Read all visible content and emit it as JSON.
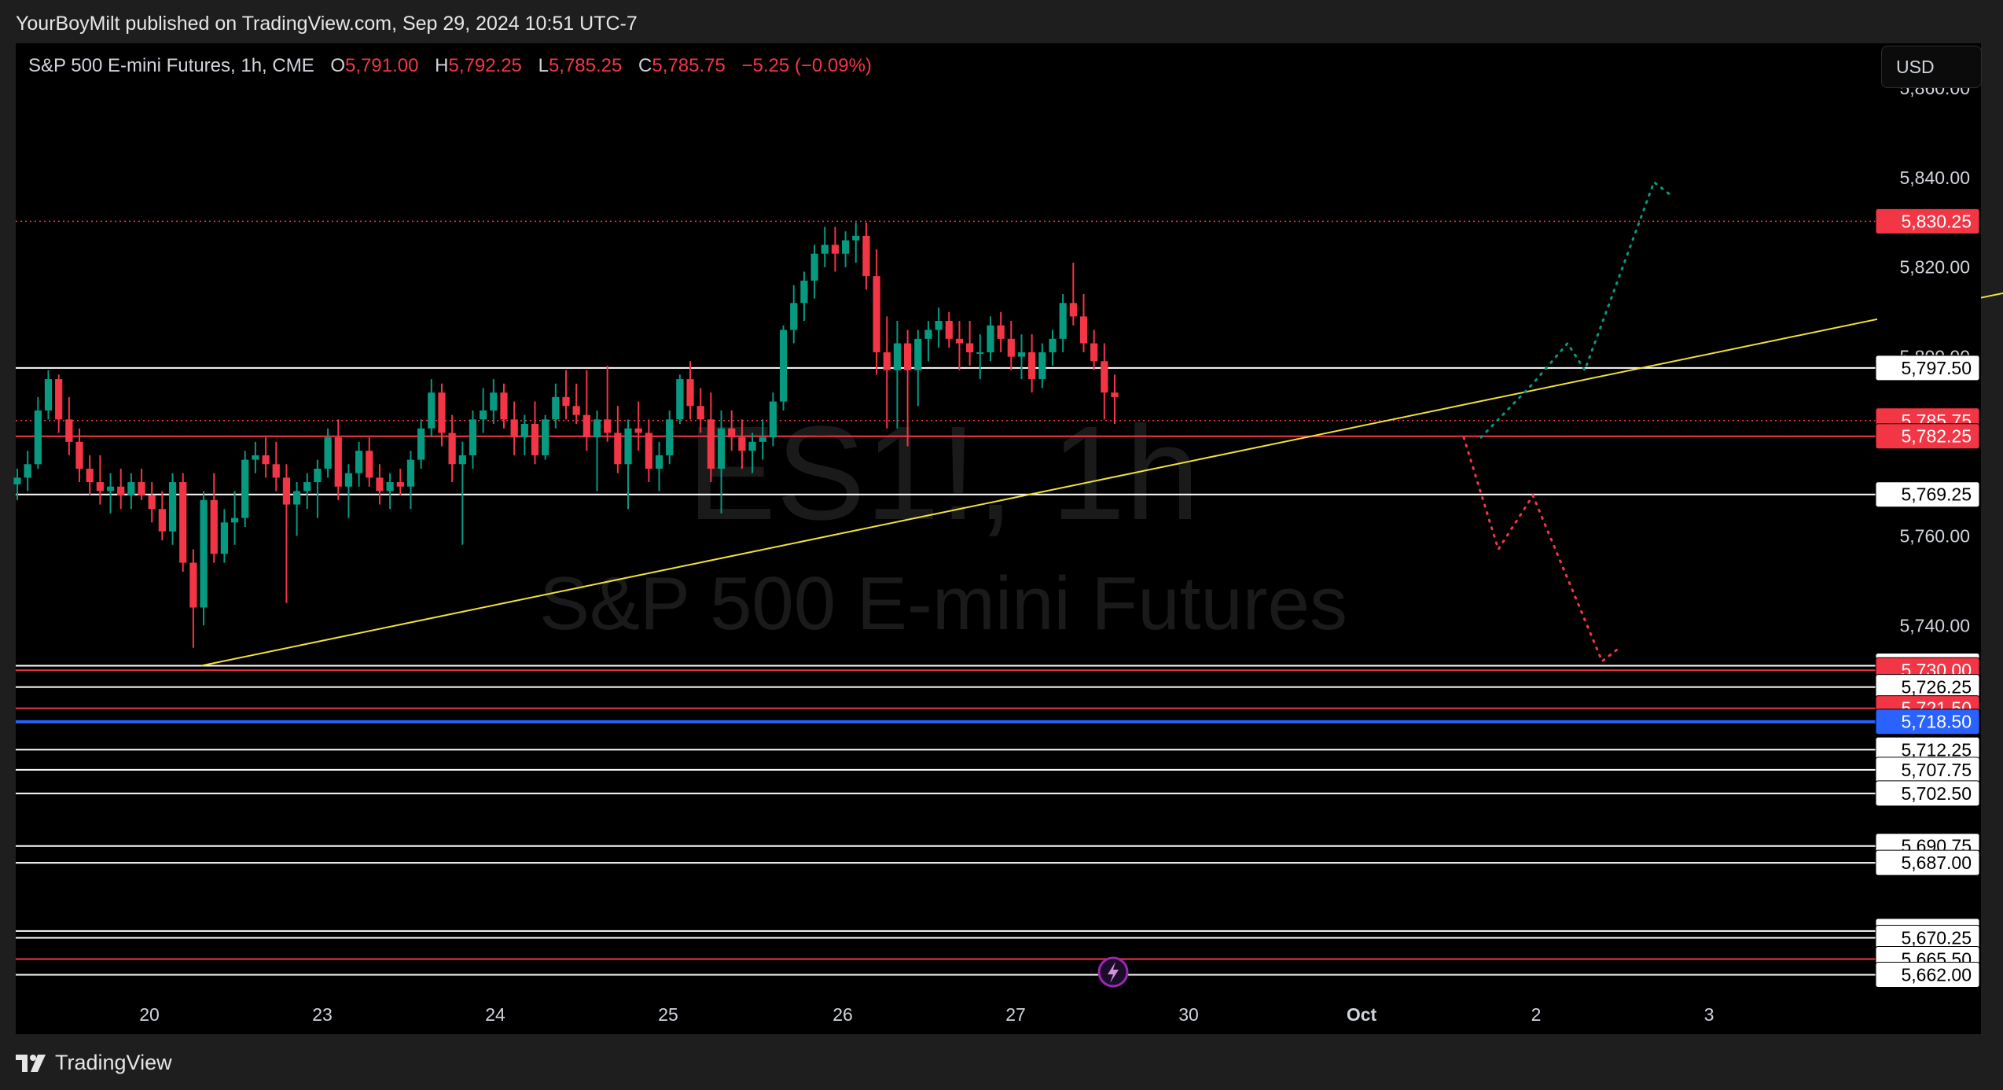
{
  "header": {
    "publish_text": "YourBoyMilt published on TradingView.com, Sep 29, 2024 10:51 UTC-7"
  },
  "legend": {
    "symbol": "S&P 500 E-mini Futures, 1h, CME",
    "o_label": "O",
    "o_value": "5,791.00",
    "h_label": "H",
    "h_value": "5,792.25",
    "l_label": "L",
    "l_value": "5,785.25",
    "c_label": "C",
    "c_value": "5,785.75",
    "change": "−5.25 (−0.09%)"
  },
  "currency": "USD",
  "watermark": {
    "ticker": "ES1!, 1h",
    "name": "S&P 500 E-mini Futures"
  },
  "brand": "TradingView",
  "colors": {
    "up": "#089981",
    "down": "#f23645",
    "trendline": "#f0e13a",
    "blue_level": "#2962ff",
    "background": "#000000"
  },
  "chart_data": {
    "type": "candlestick",
    "timeframe": "1h",
    "ylim": [
      5660.5,
      5870.0
    ],
    "y_ticks": [
      "5,860.00",
      "5,840.00",
      "5,820.00",
      "5,800.00",
      "5,760.00",
      "5,740.00"
    ],
    "x_ticks": [
      "20",
      "23",
      "24",
      "25",
      "26",
      "27",
      "30",
      "Oct",
      "2",
      "3"
    ],
    "x_tick_bold": [
      "Oct"
    ],
    "levels": [
      {
        "label": "5,830.25",
        "value": 5830.25,
        "style": "dotted-red",
        "tag": "red"
      },
      {
        "label": "5,797.50",
        "value": 5797.5,
        "style": "white",
        "tag": "white"
      },
      {
        "label": "5,785.75",
        "value": 5785.75,
        "style": "dotted-red",
        "tag": "red"
      },
      {
        "label": "5,782.25",
        "value": 5782.25,
        "style": "red",
        "tag": "red"
      },
      {
        "label": "5,769.25",
        "value": 5769.25,
        "style": "white",
        "tag": "white"
      },
      {
        "label": "5,731.00",
        "value": 5731.0,
        "style": "white",
        "tag": "white"
      },
      {
        "label": "5,730.00",
        "value": 5730.0,
        "style": "red",
        "tag": "red"
      },
      {
        "label": "5,726.25",
        "value": 5726.25,
        "style": "white",
        "tag": "white"
      },
      {
        "label": "5,721.50",
        "value": 5721.5,
        "style": "red",
        "tag": "red"
      },
      {
        "label": "5,718.50",
        "value": 5718.5,
        "style": "blue",
        "tag": "blue"
      },
      {
        "label": "5,712.25",
        "value": 5712.25,
        "style": "white",
        "tag": "white"
      },
      {
        "label": "5,707.75",
        "value": 5707.75,
        "style": "white",
        "tag": "white"
      },
      {
        "label": "5,702.50",
        "value": 5702.5,
        "style": "white",
        "tag": "white"
      },
      {
        "label": "5,690.75",
        "value": 5690.75,
        "style": "white",
        "tag": "white"
      },
      {
        "label": "5,687.00",
        "value": 5687.0,
        "style": "white",
        "tag": "white"
      },
      {
        "label": "5,671.75",
        "value": 5671.75,
        "style": "white",
        "tag": "white"
      },
      {
        "label": "5,670.25",
        "value": 5670.25,
        "style": "white",
        "tag": "white"
      },
      {
        "label": "5,665.50",
        "value": 5665.5,
        "style": "red",
        "tag": "white"
      },
      {
        "label": "5,662.00",
        "value": 5662.0,
        "style": "white",
        "tag": "white"
      }
    ],
    "trendline": {
      "from": {
        "day": 20.3,
        "price": 5731.0
      },
      "to": {
        "day": 33.7,
        "price": 5838.0
      }
    },
    "projection_up": [
      [
        27.7,
        5782.0
      ],
      [
        28.0,
        5794.0
      ],
      [
        28.2,
        5803.0
      ],
      [
        28.3,
        5797.0
      ],
      [
        28.5,
        5818.0
      ],
      [
        28.7,
        5839.0
      ],
      [
        28.8,
        5836.0
      ]
    ],
    "projection_down": [
      [
        27.6,
        5782.0
      ],
      [
        27.8,
        5757.0
      ],
      [
        28.0,
        5769.0
      ],
      [
        28.4,
        5732.0
      ],
      [
        28.5,
        5735.0
      ]
    ],
    "candles": [
      [
        5771.5,
        5775.0,
        5768.0,
        5773.0
      ],
      [
        5773.0,
        5779.0,
        5770.0,
        5776.0
      ],
      [
        5776.0,
        5791.0,
        5775.0,
        5788.0
      ],
      [
        5788.0,
        5797.0,
        5786.0,
        5795.0
      ],
      [
        5795.0,
        5796.0,
        5783.0,
        5786.0
      ],
      [
        5786.0,
        5791.0,
        5778.0,
        5781.0
      ],
      [
        5781.0,
        5784.0,
        5772.0,
        5775.0
      ],
      [
        5775.0,
        5778.0,
        5769.0,
        5772.0
      ],
      [
        5772.0,
        5778.0,
        5767.0,
        5770.0
      ],
      [
        5770.0,
        5774.0,
        5765.0,
        5771.0
      ],
      [
        5771.0,
        5775.0,
        5766.0,
        5769.0
      ],
      [
        5769.0,
        5774.0,
        5766.0,
        5772.0
      ],
      [
        5772.0,
        5775.0,
        5768.0,
        5769.0
      ],
      [
        5769.0,
        5772.0,
        5763.0,
        5766.0
      ],
      [
        5766.0,
        5770.0,
        5759.0,
        5761.0
      ],
      [
        5761.0,
        5774.0,
        5758.0,
        5772.0
      ],
      [
        5772.0,
        5774.0,
        5752.0,
        5754.0
      ],
      [
        5754.0,
        5757.0,
        5735.0,
        5744.0
      ],
      [
        5744.0,
        5770.0,
        5740.0,
        5768.0
      ],
      [
        5768.0,
        5774.0,
        5754.0,
        5756.0
      ],
      [
        5756.0,
        5766.0,
        5754.0,
        5763.0
      ],
      [
        5763.0,
        5770.0,
        5758.0,
        5764.0
      ],
      [
        5764.0,
        5779.0,
        5762.0,
        5777.0
      ],
      [
        5777.0,
        5781.0,
        5774.0,
        5778.0
      ],
      [
        5778.0,
        5782.0,
        5773.0,
        5776.0
      ],
      [
        5776.0,
        5781.0,
        5770.0,
        5773.0
      ],
      [
        5773.0,
        5776.0,
        5745.0,
        5767.0
      ],
      [
        5767.0,
        5772.0,
        5760.0,
        5770.0
      ],
      [
        5770.0,
        5774.0,
        5766.0,
        5772.0
      ],
      [
        5772.0,
        5777.0,
        5764.0,
        5775.0
      ],
      [
        5775.0,
        5784.0,
        5773.0,
        5782.0
      ],
      [
        5782.0,
        5786.0,
        5768.0,
        5771.0
      ],
      [
        5771.0,
        5776.0,
        5764.0,
        5774.0
      ],
      [
        5774.0,
        5781.0,
        5771.0,
        5779.0
      ],
      [
        5779.0,
        5782.0,
        5771.0,
        5773.0
      ],
      [
        5773.0,
        5776.0,
        5767.0,
        5770.0
      ],
      [
        5770.0,
        5774.0,
        5766.0,
        5772.0
      ],
      [
        5772.0,
        5775.0,
        5769.0,
        5771.0
      ],
      [
        5771.0,
        5779.0,
        5766.0,
        5777.0
      ],
      [
        5777.0,
        5786.0,
        5775.0,
        5784.0
      ],
      [
        5784.0,
        5795.0,
        5782.0,
        5792.0
      ],
      [
        5792.0,
        5794.0,
        5780.0,
        5783.0
      ],
      [
        5783.0,
        5787.0,
        5772.0,
        5776.0
      ],
      [
        5776.0,
        5781.0,
        5758.0,
        5778.0
      ],
      [
        5778.0,
        5788.0,
        5775.0,
        5786.0
      ],
      [
        5786.0,
        5793.0,
        5783.0,
        5788.0
      ],
      [
        5788.0,
        5795.0,
        5785.0,
        5792.0
      ],
      [
        5792.0,
        5794.0,
        5784.0,
        5786.0
      ],
      [
        5786.0,
        5790.0,
        5778.0,
        5782.0
      ],
      [
        5782.0,
        5787.0,
        5778.0,
        5785.0
      ],
      [
        5785.0,
        5790.0,
        5776.0,
        5778.0
      ],
      [
        5778.0,
        5787.0,
        5777.0,
        5786.0
      ],
      [
        5786.0,
        5794.0,
        5784.0,
        5791.0
      ],
      [
        5791.0,
        5797.0,
        5786.0,
        5789.0
      ],
      [
        5789.0,
        5794.0,
        5785.0,
        5787.0
      ],
      [
        5787.0,
        5797.0,
        5779.0,
        5782.0
      ],
      [
        5782.0,
        5788.0,
        5770.0,
        5786.0
      ],
      [
        5786.0,
        5798.0,
        5781.0,
        5783.0
      ],
      [
        5783.0,
        5789.0,
        5774.0,
        5776.0
      ],
      [
        5776.0,
        5786.0,
        5766.0,
        5784.0
      ],
      [
        5784.0,
        5790.0,
        5779.0,
        5783.0
      ],
      [
        5783.0,
        5786.0,
        5772.0,
        5775.0
      ],
      [
        5775.0,
        5781.0,
        5770.0,
        5778.0
      ],
      [
        5778.0,
        5788.0,
        5776.0,
        5786.0
      ],
      [
        5786.0,
        5796.0,
        5785.0,
        5795.0
      ],
      [
        5795.0,
        5799.0,
        5786.0,
        5789.0
      ],
      [
        5789.0,
        5793.0,
        5783.0,
        5786.0
      ],
      [
        5786.0,
        5792.0,
        5772.0,
        5775.0
      ],
      [
        5775.0,
        5788.0,
        5765.0,
        5784.0
      ],
      [
        5784.0,
        5788.0,
        5779.0,
        5782.0
      ],
      [
        5782.0,
        5786.0,
        5775.0,
        5779.0
      ],
      [
        5779.0,
        5783.0,
        5774.0,
        5781.0
      ],
      [
        5781.0,
        5786.0,
        5777.0,
        5782.0
      ],
      [
        5782.0,
        5792.0,
        5780.0,
        5790.0
      ],
      [
        5790.0,
        5807.0,
        5788.0,
        5806.0
      ],
      [
        5806.0,
        5816.0,
        5803.0,
        5812.0
      ],
      [
        5812.0,
        5819.0,
        5808.0,
        5817.0
      ],
      [
        5817.0,
        5825.0,
        5813.0,
        5823.0
      ],
      [
        5823.0,
        5829.0,
        5820.0,
        5825.0
      ],
      [
        5825.0,
        5829.0,
        5819.0,
        5823.0
      ],
      [
        5823.0,
        5828.0,
        5820.0,
        5826.0
      ],
      [
        5826.0,
        5830.0,
        5821.0,
        5827.0
      ],
      [
        5827.0,
        5830.0,
        5815.0,
        5818.0
      ],
      [
        5818.0,
        5824.0,
        5796.0,
        5801.0
      ],
      [
        5801.0,
        5809.0,
        5784.0,
        5797.0
      ],
      [
        5797.0,
        5808.0,
        5784.0,
        5803.0
      ],
      [
        5803.0,
        5806.0,
        5780.0,
        5797.0
      ],
      [
        5797.0,
        5806.0,
        5789.0,
        5804.0
      ],
      [
        5804.0,
        5808.0,
        5799.0,
        5806.0
      ],
      [
        5806.0,
        5811.0,
        5802.0,
        5808.0
      ],
      [
        5808.0,
        5810.0,
        5802.0,
        5804.0
      ],
      [
        5804.0,
        5808.0,
        5797.0,
        5803.0
      ],
      [
        5803.0,
        5808.0,
        5798.0,
        5801.0
      ],
      [
        5801.0,
        5805.0,
        5795.0,
        5801.0
      ],
      [
        5801.0,
        5809.0,
        5799.0,
        5807.0
      ],
      [
        5807.0,
        5810.0,
        5801.0,
        5804.0
      ],
      [
        5804.0,
        5808.0,
        5797.0,
        5800.0
      ],
      [
        5800.0,
        5805.0,
        5795.0,
        5801.0
      ],
      [
        5801.0,
        5805.0,
        5792.0,
        5795.0
      ],
      [
        5795.0,
        5803.0,
        5793.0,
        5801.0
      ],
      [
        5801.0,
        5806.0,
        5798.0,
        5804.0
      ],
      [
        5804.0,
        5814.0,
        5801.0,
        5812.0
      ],
      [
        5812.0,
        5821.0,
        5807.0,
        5809.0
      ],
      [
        5809.0,
        5814.0,
        5801.0,
        5803.0
      ],
      [
        5803.0,
        5806.0,
        5797.0,
        5799.0
      ],
      [
        5799.0,
        5803.0,
        5786.0,
        5792.0
      ],
      [
        5792.0,
        5796.0,
        5785.0,
        5791.0
      ]
    ]
  }
}
